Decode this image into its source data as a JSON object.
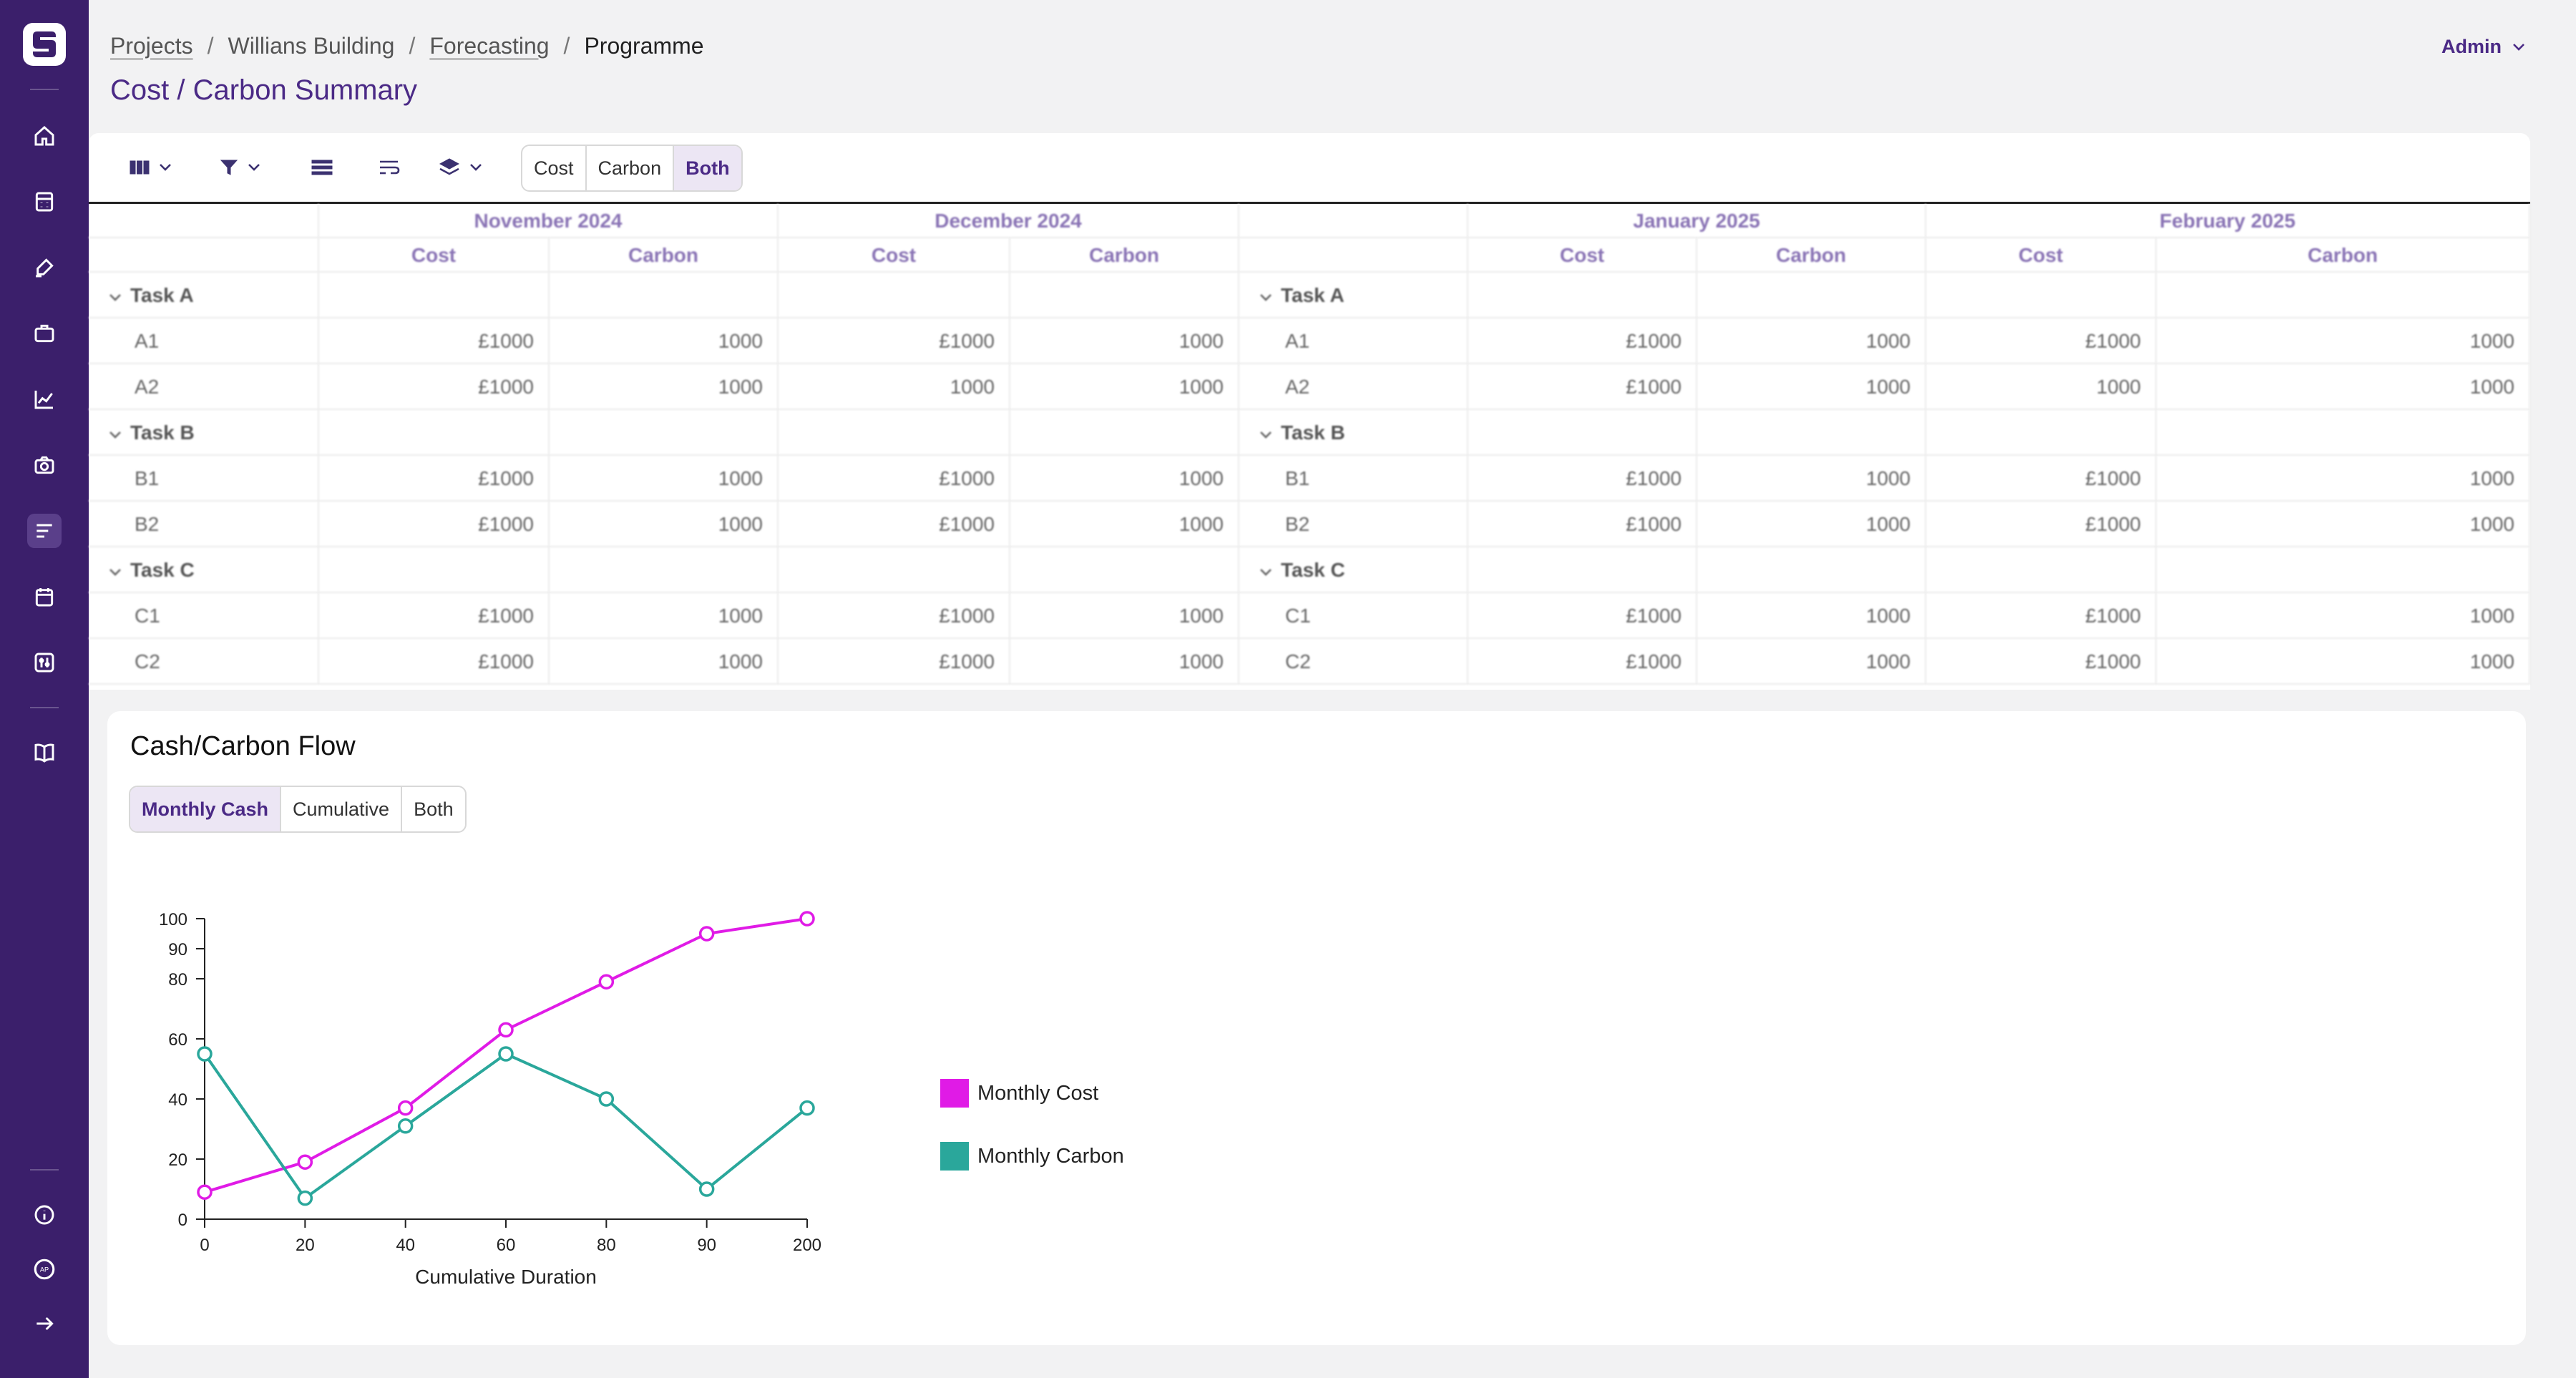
{
  "breadcrumb": {
    "projects": "Projects",
    "building": "Willians Building",
    "forecasting": "Forecasting",
    "current": "Programme",
    "sep": "/"
  },
  "page_title": "Cost / Carbon Summary",
  "user": {
    "name": "Admin"
  },
  "toolbar": {
    "view_toggle": [
      "Cost",
      "Carbon",
      "Both"
    ],
    "selected": "Both"
  },
  "table": {
    "left_months": [
      "November 2024",
      "December 2024"
    ],
    "right_months": [
      "January 2025",
      "February 2025"
    ],
    "sub_cols": [
      "Cost",
      "Carbon"
    ],
    "rows": [
      {
        "type": "group",
        "label": "Task A"
      },
      {
        "type": "item",
        "label": "A1",
        "left": [
          "£1000",
          "1000",
          "£1000",
          "1000"
        ],
        "right": [
          "£1000",
          "1000",
          "£1000",
          "1000"
        ]
      },
      {
        "type": "item",
        "label": "A2",
        "left": [
          "£1000",
          "1000",
          "1000",
          "1000"
        ],
        "right": [
          "£1000",
          "1000",
          "1000",
          "1000"
        ]
      },
      {
        "type": "group",
        "label": "Task B"
      },
      {
        "type": "item",
        "label": "B1",
        "left": [
          "£1000",
          "1000",
          "£1000",
          "1000"
        ],
        "right": [
          "£1000",
          "1000",
          "£1000",
          "1000"
        ]
      },
      {
        "type": "item",
        "label": "B2",
        "left": [
          "£1000",
          "1000",
          "£1000",
          "1000"
        ],
        "right": [
          "£1000",
          "1000",
          "£1000",
          "1000"
        ]
      },
      {
        "type": "group",
        "label": "Task C"
      },
      {
        "type": "item",
        "label": "C1",
        "left": [
          "£1000",
          "1000",
          "£1000",
          "1000"
        ],
        "right": [
          "£1000",
          "1000",
          "£1000",
          "1000"
        ]
      },
      {
        "type": "item",
        "label": "C2",
        "left": [
          "£1000",
          "1000",
          "£1000",
          "1000"
        ],
        "right": [
          "£1000",
          "1000",
          "£1000",
          "1000"
        ]
      }
    ]
  },
  "flow": {
    "title": "Cash/Carbon Flow",
    "mode_toggle": [
      "Monthly Cash",
      "Cumulative",
      "Both"
    ],
    "selected": "Monthly Cash"
  },
  "colors": {
    "brand": "#3b1f6b",
    "accent": "#4b2a86",
    "cost": "#e01be6",
    "carbon": "#2aa79b"
  },
  "chart_data": {
    "type": "line",
    "x": [
      "0",
      "20",
      "40",
      "60",
      "80",
      "90",
      "200"
    ],
    "xlabel": "Cumulative Duration",
    "ylabel": "",
    "ylim": [
      0,
      100
    ],
    "yticks": [
      0,
      20,
      40,
      60,
      80,
      90,
      100
    ],
    "legend_position": "right",
    "grid": false,
    "series": [
      {
        "name": "Monthly Cost",
        "color": "#e01be6",
        "values": [
          9,
          19,
          37,
          63,
          79,
          95,
          100
        ]
      },
      {
        "name": "Monthly Carbon",
        "color": "#2aa79b",
        "values": [
          55,
          7,
          31,
          55,
          40,
          10,
          37
        ]
      }
    ]
  }
}
